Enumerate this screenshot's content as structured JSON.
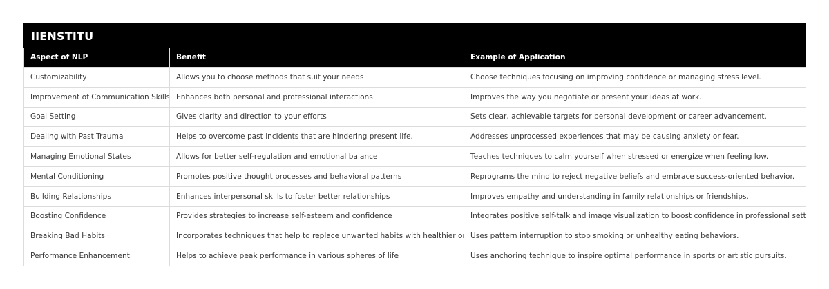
{
  "title": "IIENSTITU",
  "columns": [
    "Aspect of NLP",
    "Benefit",
    "Example of Application"
  ],
  "rows": [
    [
      "Customizability",
      "Allows you to choose methods that suit your needs",
      "Choose techniques focusing on improving confidence or managing stress level."
    ],
    [
      "Improvement of Communication Skills",
      "Enhances both personal and professional interactions",
      "Improves the way you negotiate or present your ideas at work."
    ],
    [
      "Goal Setting",
      "Gives clarity and direction to your efforts",
      "Sets clear, achievable targets for personal development or career advancement."
    ],
    [
      "Dealing with Past Trauma",
      "Helps to overcome past incidents that are hindering present life.",
      "Addresses unprocessed experiences that may be causing anxiety or fear."
    ],
    [
      "Managing Emotional States",
      "Allows for better self-regulation and emotional balance",
      "Teaches techniques to calm yourself when stressed or energize when feeling low."
    ],
    [
      "Mental Conditioning",
      "Promotes positive thought processes and behavioral patterns",
      "Reprograms the mind to reject negative beliefs and embrace success-oriented behavior."
    ],
    [
      "Building Relationships",
      "Enhances interpersonal skills to foster better relationships",
      "Improves empathy and understanding in family relationships or friendships."
    ],
    [
      "Boosting Confidence",
      "Provides strategies to increase self-esteem and confidence",
      "Integrates positive self-talk and image visualization to boost confidence in professional settings."
    ],
    [
      "Breaking Bad Habits",
      "Incorporates techniques that help to replace unwanted habits with healthier ones",
      "Uses pattern interruption to stop smoking or unhealthy eating behaviors."
    ],
    [
      "Performance Enhancement",
      "Helps to achieve peak performance in various spheres of life",
      "Uses anchoring technique to inspire optimal performance in sports or artistic pursuits."
    ]
  ]
}
